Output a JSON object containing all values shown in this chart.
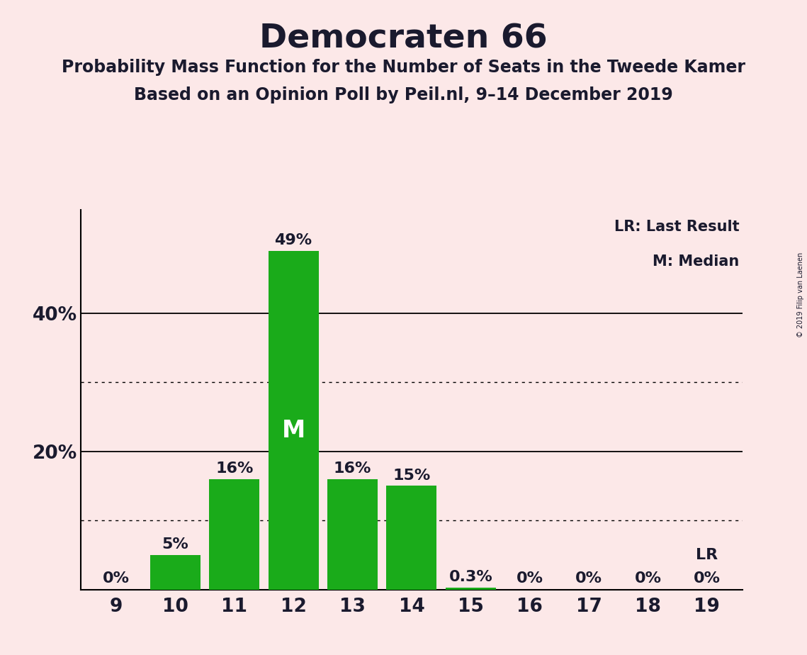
{
  "title": "Democraten 66",
  "subtitle1": "Probability Mass Function for the Number of Seats in the Tweede Kamer",
  "subtitle2": "Based on an Opinion Poll by Peil.nl, 9–14 December 2019",
  "copyright": "© 2019 Filip van Laenen",
  "categories": [
    9,
    10,
    11,
    12,
    13,
    14,
    15,
    16,
    17,
    18,
    19
  ],
  "values": [
    0.0,
    5.0,
    16.0,
    49.0,
    16.0,
    15.0,
    0.3,
    0.0,
    0.0,
    0.0,
    0.0
  ],
  "bar_labels": [
    "0%",
    "5%",
    "16%",
    "49%",
    "16%",
    "15%",
    "0.3%",
    "0%",
    "0%",
    "0%",
    "0%"
  ],
  "bar_color": "#1aab1a",
  "background_color": "#fce8e8",
  "median_bar": 12,
  "median_label": "M",
  "lr_bar": 19,
  "lr_label": "LR",
  "legend_lr": "LR: Last Result",
  "legend_m": "M: Median",
  "ylim": [
    0,
    55
  ],
  "solid_gridlines": [
    20,
    40
  ],
  "dotted_gridlines": [
    10,
    30
  ],
  "title_fontsize": 34,
  "subtitle_fontsize": 17,
  "bar_label_fontsize": 16,
  "axis_label_fontsize": 19,
  "legend_fontsize": 15,
  "copyright_fontsize": 7
}
